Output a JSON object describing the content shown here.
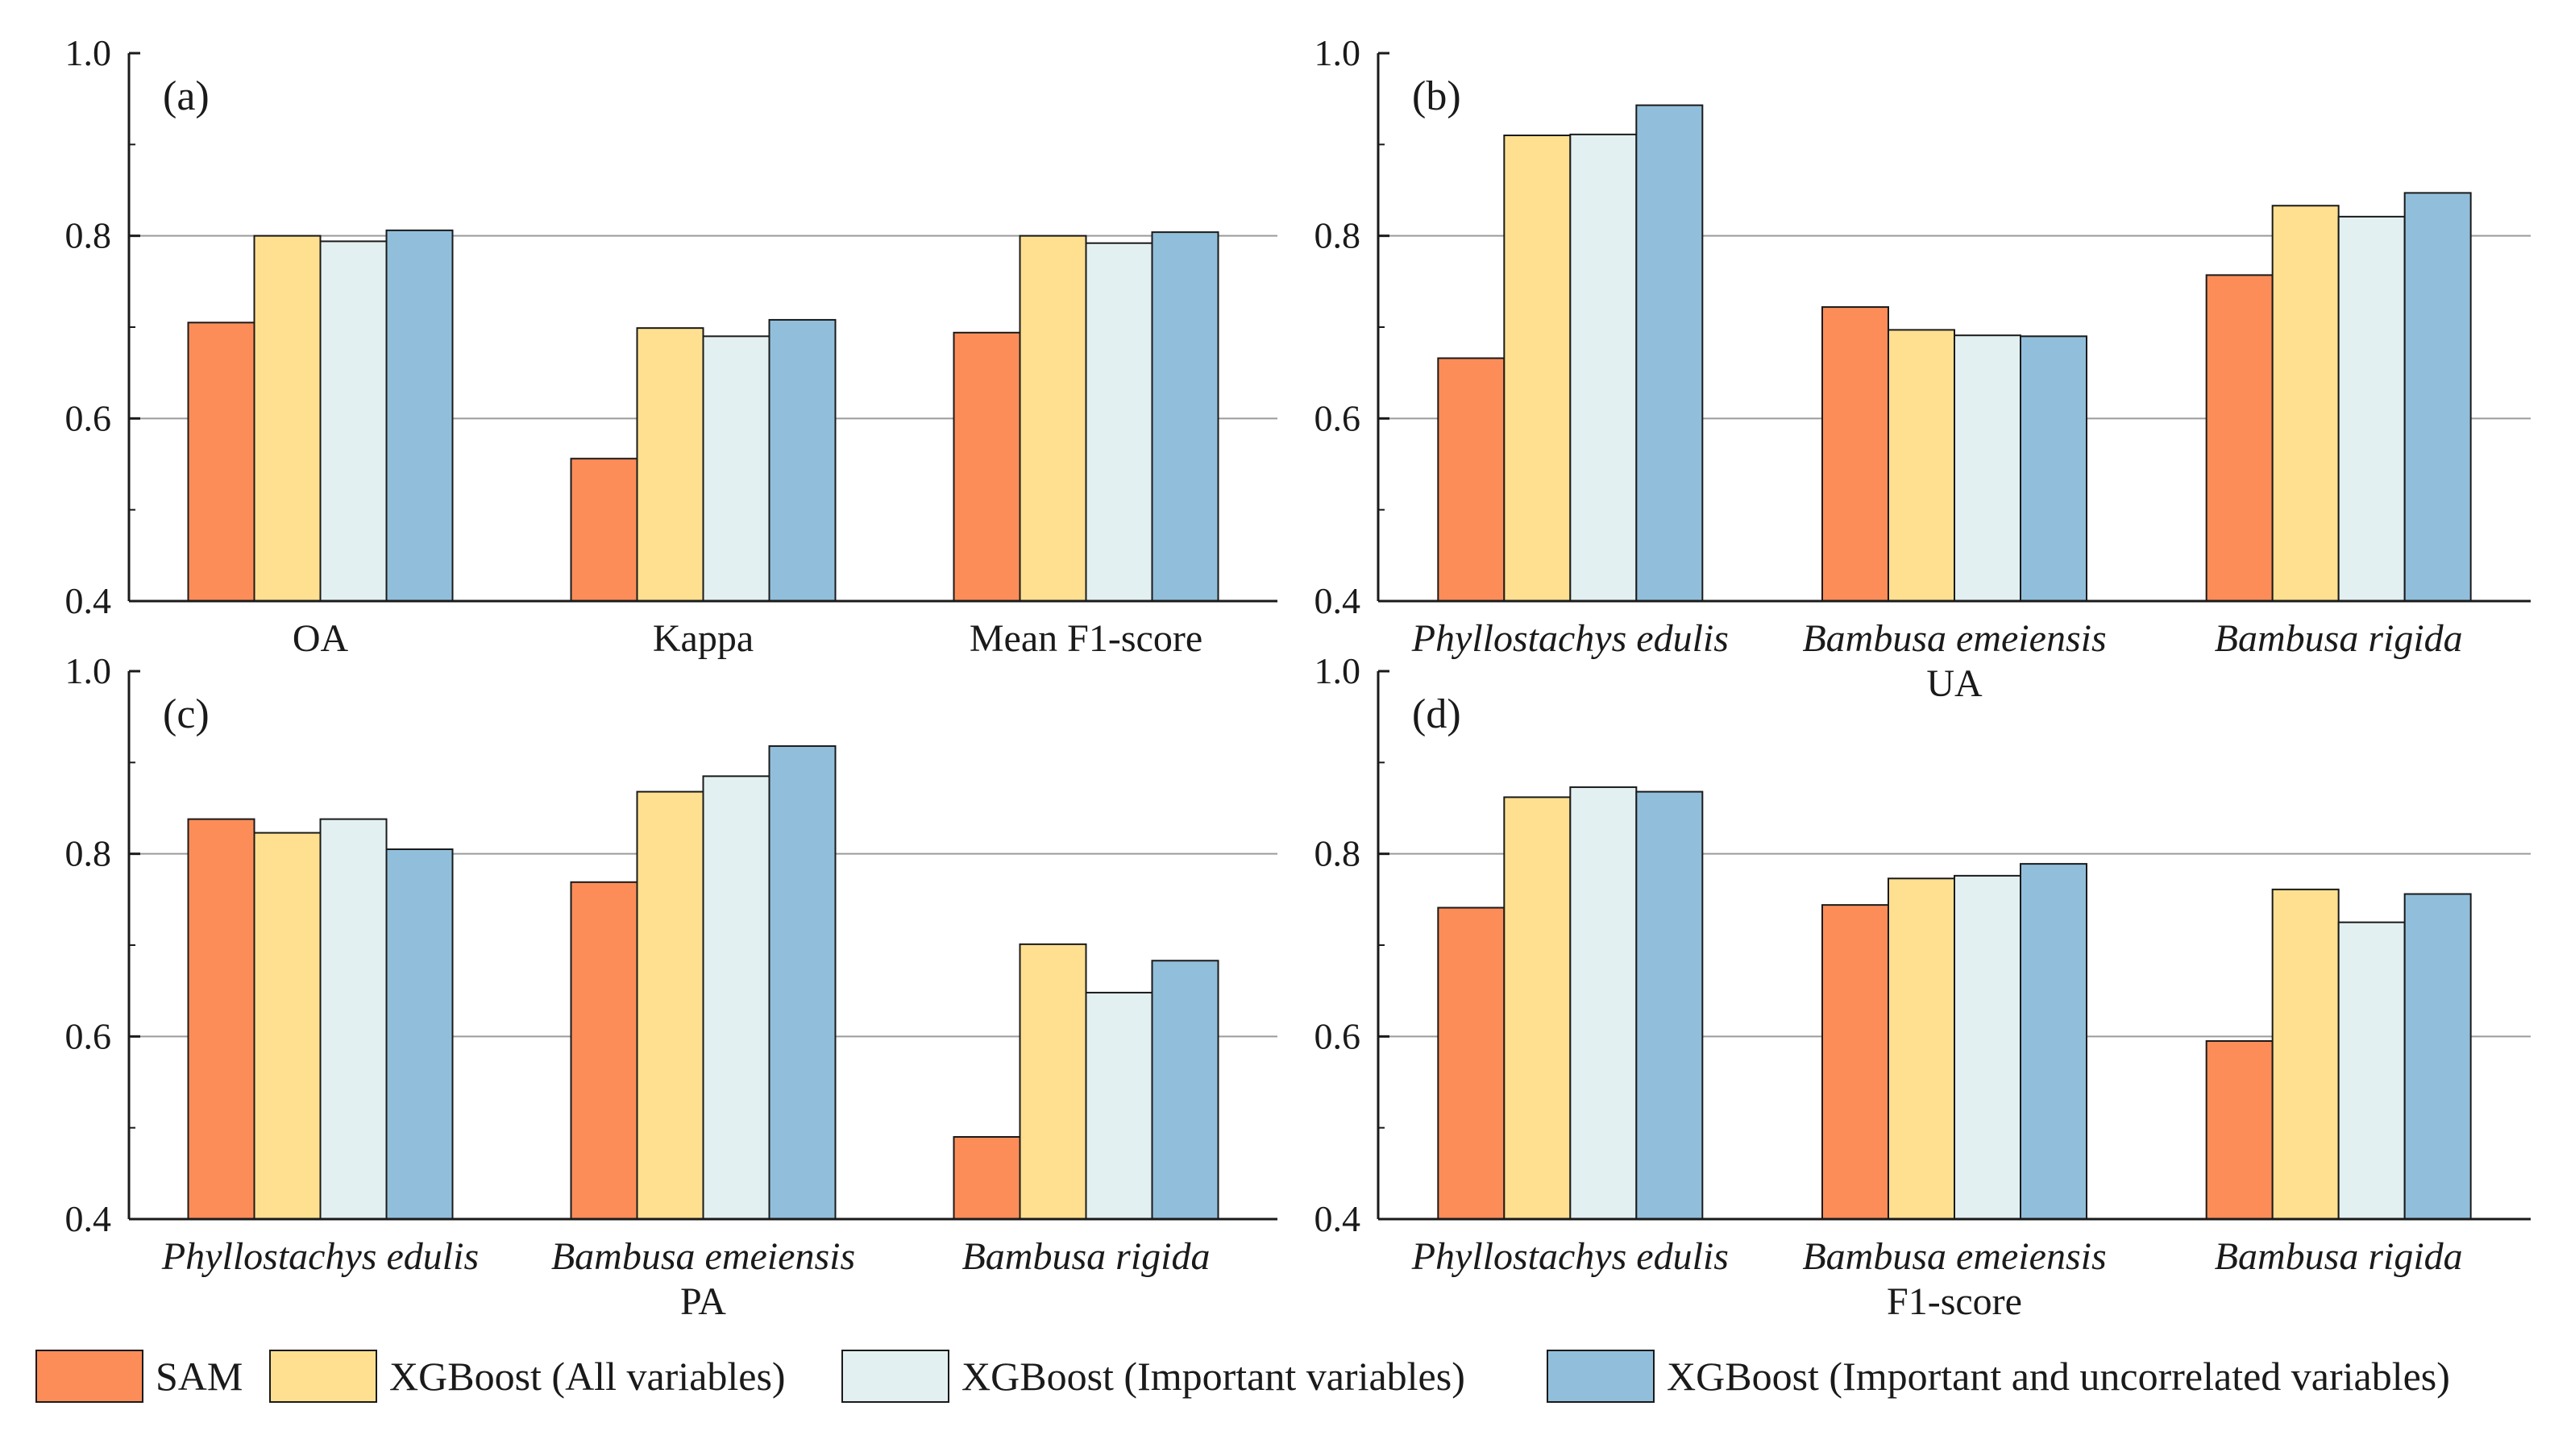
{
  "legend": [
    {
      "name": "SAM",
      "color": "#FC8D59"
    },
    {
      "name": "XGBoost (All variables)",
      "color": "#FEE090"
    },
    {
      "name": "XGBoost (Important variables)",
      "color": "#E3F0F1"
    },
    {
      "name": "XGBoost (Important and uncorrelated variables)",
      "color": "#91BFDB"
    }
  ],
  "chart_data": [
    {
      "type": "bar",
      "panel_label": "(a)",
      "xlabel": "",
      "categories": [
        "OA",
        "Kappa",
        "Mean F1-score"
      ],
      "italic_categories": false,
      "ylim": [
        0.4,
        1.0
      ],
      "yticks": [
        "0.4",
        "0.6",
        "0.8",
        "1.0"
      ],
      "grid": true,
      "series": [
        {
          "name": "SAM",
          "values": [
            0.705,
            0.556,
            0.694
          ]
        },
        {
          "name": "XGBoost (All variables)",
          "values": [
            0.8,
            0.699,
            0.8
          ]
        },
        {
          "name": "XGBoost (Important variables)",
          "values": [
            0.794,
            0.69,
            0.792
          ]
        },
        {
          "name": "XGBoost (Important and uncorrelated variables)",
          "values": [
            0.806,
            0.708,
            0.804
          ]
        }
      ]
    },
    {
      "type": "bar",
      "panel_label": "(b)",
      "xlabel": "UA",
      "categories": [
        "Phyllostachys edulis",
        "Bambusa emeiensis",
        "Bambusa rigida"
      ],
      "italic_categories": true,
      "ylim": [
        0.4,
        1.0
      ],
      "yticks": [
        "0.4",
        "0.6",
        "0.8",
        "1.0"
      ],
      "grid": true,
      "series": [
        {
          "name": "SAM",
          "values": [
            0.666,
            0.722,
            0.757
          ]
        },
        {
          "name": "XGBoost (All variables)",
          "values": [
            0.91,
            0.697,
            0.833
          ]
        },
        {
          "name": "XGBoost (Important variables)",
          "values": [
            0.911,
            0.691,
            0.821
          ]
        },
        {
          "name": "XGBoost (Important and uncorrelated variables)",
          "values": [
            0.943,
            0.69,
            0.847
          ]
        }
      ]
    },
    {
      "type": "bar",
      "panel_label": "(c)",
      "xlabel": "PA",
      "categories": [
        "Phyllostachys edulis",
        "Bambusa emeiensis",
        "Bambusa rigida"
      ],
      "italic_categories": true,
      "ylim": [
        0.4,
        1.0
      ],
      "yticks": [
        "0.4",
        "0.6",
        "0.8",
        "1.0"
      ],
      "grid": true,
      "series": [
        {
          "name": "SAM",
          "values": [
            0.838,
            0.769,
            0.49
          ]
        },
        {
          "name": "XGBoost (All variables)",
          "values": [
            0.823,
            0.868,
            0.701
          ]
        },
        {
          "name": "XGBoost (Important variables)",
          "values": [
            0.838,
            0.885,
            0.648
          ]
        },
        {
          "name": "XGBoost (Important and uncorrelated variables)",
          "values": [
            0.805,
            0.918,
            0.683
          ]
        }
      ]
    },
    {
      "type": "bar",
      "panel_label": "(d)",
      "xlabel": "F1-score",
      "categories": [
        "Phyllostachys edulis",
        "Bambusa emeiensis",
        "Bambusa rigida"
      ],
      "italic_categories": true,
      "ylim": [
        0.4,
        1.0
      ],
      "yticks": [
        "0.4",
        "0.6",
        "0.8",
        "1.0"
      ],
      "grid": true,
      "series": [
        {
          "name": "SAM",
          "values": [
            0.741,
            0.744,
            0.595
          ]
        },
        {
          "name": "XGBoost (All variables)",
          "values": [
            0.862,
            0.773,
            0.761
          ]
        },
        {
          "name": "XGBoost (Important variables)",
          "values": [
            0.873,
            0.776,
            0.725
          ]
        },
        {
          "name": "XGBoost (Important and uncorrelated variables)",
          "values": [
            0.868,
            0.789,
            0.756
          ]
        }
      ]
    }
  ]
}
